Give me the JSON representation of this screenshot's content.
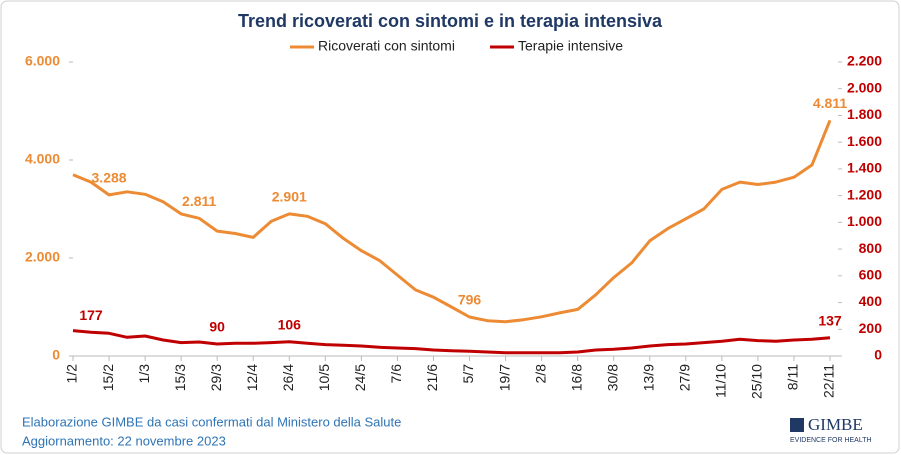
{
  "chart_data": {
    "type": "line",
    "title": "Trend ricoverati con sintomi e in terapia intensiva",
    "categories": [
      "1/2",
      null,
      "15/2",
      null,
      "1/3",
      null,
      "15/3",
      null,
      "29/3",
      null,
      "12/4",
      null,
      "26/4",
      null,
      "10/5",
      null,
      "24/5",
      null,
      "7/6",
      null,
      "21/6",
      null,
      "5/7",
      null,
      "19/7",
      null,
      "2/8",
      null,
      "16/8",
      null,
      "30/8",
      null,
      "13/9",
      null,
      "27/9",
      null,
      "11/10",
      null,
      "25/10",
      null,
      "8/11",
      null,
      "22/11"
    ],
    "series": [
      {
        "name": "Ricoverati con sintomi",
        "color": "#ed8b34",
        "values": [
          3700,
          3550,
          3288,
          3350,
          3300,
          3150,
          2900,
          2811,
          2550,
          2500,
          2420,
          2750,
          2901,
          2850,
          2700,
          2400,
          2150,
          1950,
          1650,
          1350,
          1200,
          1000,
          796,
          720,
          700,
          740,
          800,
          880,
          950,
          1250,
          1600,
          1900,
          2350,
          2600,
          2800,
          3000,
          3400,
          3550,
          3500,
          3550,
          3650,
          3900,
          4811
        ],
        "value_labels": [
          null,
          null,
          "3.288",
          null,
          null,
          null,
          null,
          "2.811",
          null,
          null,
          null,
          null,
          "2.901",
          null,
          null,
          null,
          null,
          null,
          null,
          null,
          null,
          null,
          "796",
          null,
          null,
          null,
          null,
          null,
          null,
          null,
          null,
          null,
          null,
          null,
          null,
          null,
          null,
          null,
          null,
          null,
          null,
          null,
          "4.811"
        ]
      },
      {
        "name": "Terapie intensive",
        "color": "#c00000",
        "axis": "y2",
        "values": [
          190,
          177,
          170,
          140,
          150,
          120,
          100,
          105,
          90,
          95,
          95,
          100,
          106,
          95,
          85,
          80,
          75,
          65,
          60,
          55,
          45,
          40,
          35,
          30,
          25,
          25,
          25,
          25,
          30,
          45,
          50,
          60,
          75,
          85,
          90,
          100,
          110,
          125,
          115,
          110,
          120,
          125,
          137
        ],
        "value_labels": [
          null,
          "177",
          null,
          null,
          null,
          null,
          null,
          null,
          "90",
          null,
          null,
          null,
          "106",
          null,
          null,
          null,
          null,
          null,
          null,
          null,
          null,
          null,
          null,
          null,
          null,
          null,
          null,
          null,
          null,
          null,
          null,
          null,
          null,
          null,
          null,
          null,
          null,
          null,
          null,
          null,
          null,
          null,
          "137"
        ]
      }
    ],
    "ylim": [
      0,
      6000
    ],
    "yticks": [
      0,
      {
        "value": 2000,
        "label": "2.000"
      },
      {
        "value": 4000,
        "label": "4.000"
      },
      {
        "value": 6000,
        "label": "6.000"
      }
    ],
    "y2lim": [
      0,
      2200
    ],
    "y2ticks": [
      0,
      200,
      400,
      600,
      800,
      {
        "value": 1000,
        "label": "1.000"
      },
      {
        "value": 1200,
        "label": "1.200"
      },
      {
        "value": 1400,
        "label": "1.400"
      },
      {
        "value": 1600,
        "label": "1.600"
      },
      {
        "value": 1800,
        "label": "1.800"
      },
      {
        "value": 2000,
        "label": "2.000"
      },
      {
        "value": 2200,
        "label": "2.200"
      }
    ],
    "grid": false,
    "legend": "top",
    "source": "Elaborazione GIMBE da casi confermati dal Ministero della Salute",
    "updated": "Aggiornamento: 22 novembre 2023",
    "logo": "GIMBE",
    "logo_tagline": "EVIDENCE FOR HEALTH"
  }
}
